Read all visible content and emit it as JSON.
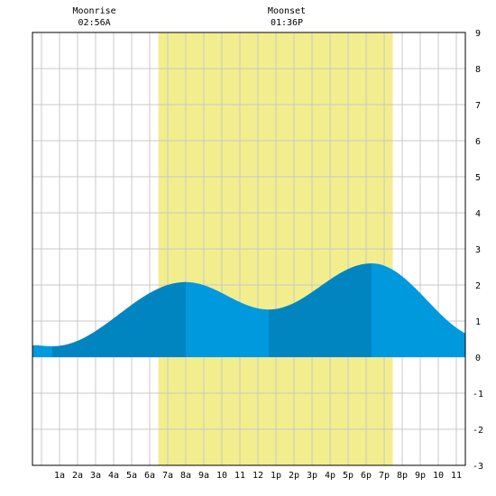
{
  "chart_data": {
    "type": "area",
    "title": "",
    "xlabel": "",
    "ylabel": "",
    "x_range_hours": [
      -0.5,
      23.5
    ],
    "ylim": [
      -3,
      9
    ],
    "x_tick_labels": [
      "1a",
      "2a",
      "3a",
      "4a",
      "5a",
      "6a",
      "7a",
      "8a",
      "9a",
      "10",
      "11",
      "12",
      "1p",
      "2p",
      "3p",
      "4p",
      "5p",
      "6p",
      "7p",
      "8p",
      "9p",
      "10",
      "11"
    ],
    "y_tick_labels": [
      "-3",
      "-2",
      "-1",
      "0",
      "1",
      "2",
      "3",
      "4",
      "5",
      "6",
      "7",
      "8",
      "9"
    ],
    "grid": true,
    "daylight_hours": [
      6.48,
      19.48
    ],
    "moon": [
      {
        "label": "Moonrise",
        "time": "02:56A",
        "hour": 2.93
      },
      {
        "label": "Moonset",
        "time": "01:36P",
        "hour": 13.6
      }
    ],
    "tide_extremes": [
      {
        "hour": 0.6,
        "height": 0.3,
        "kind": "low"
      },
      {
        "hour": 8.0,
        "height": 2.08,
        "kind": "high"
      },
      {
        "hour": 12.6,
        "height": 1.32,
        "kind": "low"
      },
      {
        "hour": 18.3,
        "height": 2.6,
        "kind": "high"
      }
    ],
    "tide_start_height": 0.33,
    "tide_end_height": 0.78,
    "colors": {
      "daylight": "#f2ee8e",
      "tide_light": "#0099dd",
      "tide_dark": "#0085c0",
      "grid": "#c8c8c8",
      "axis": "#000000"
    }
  }
}
